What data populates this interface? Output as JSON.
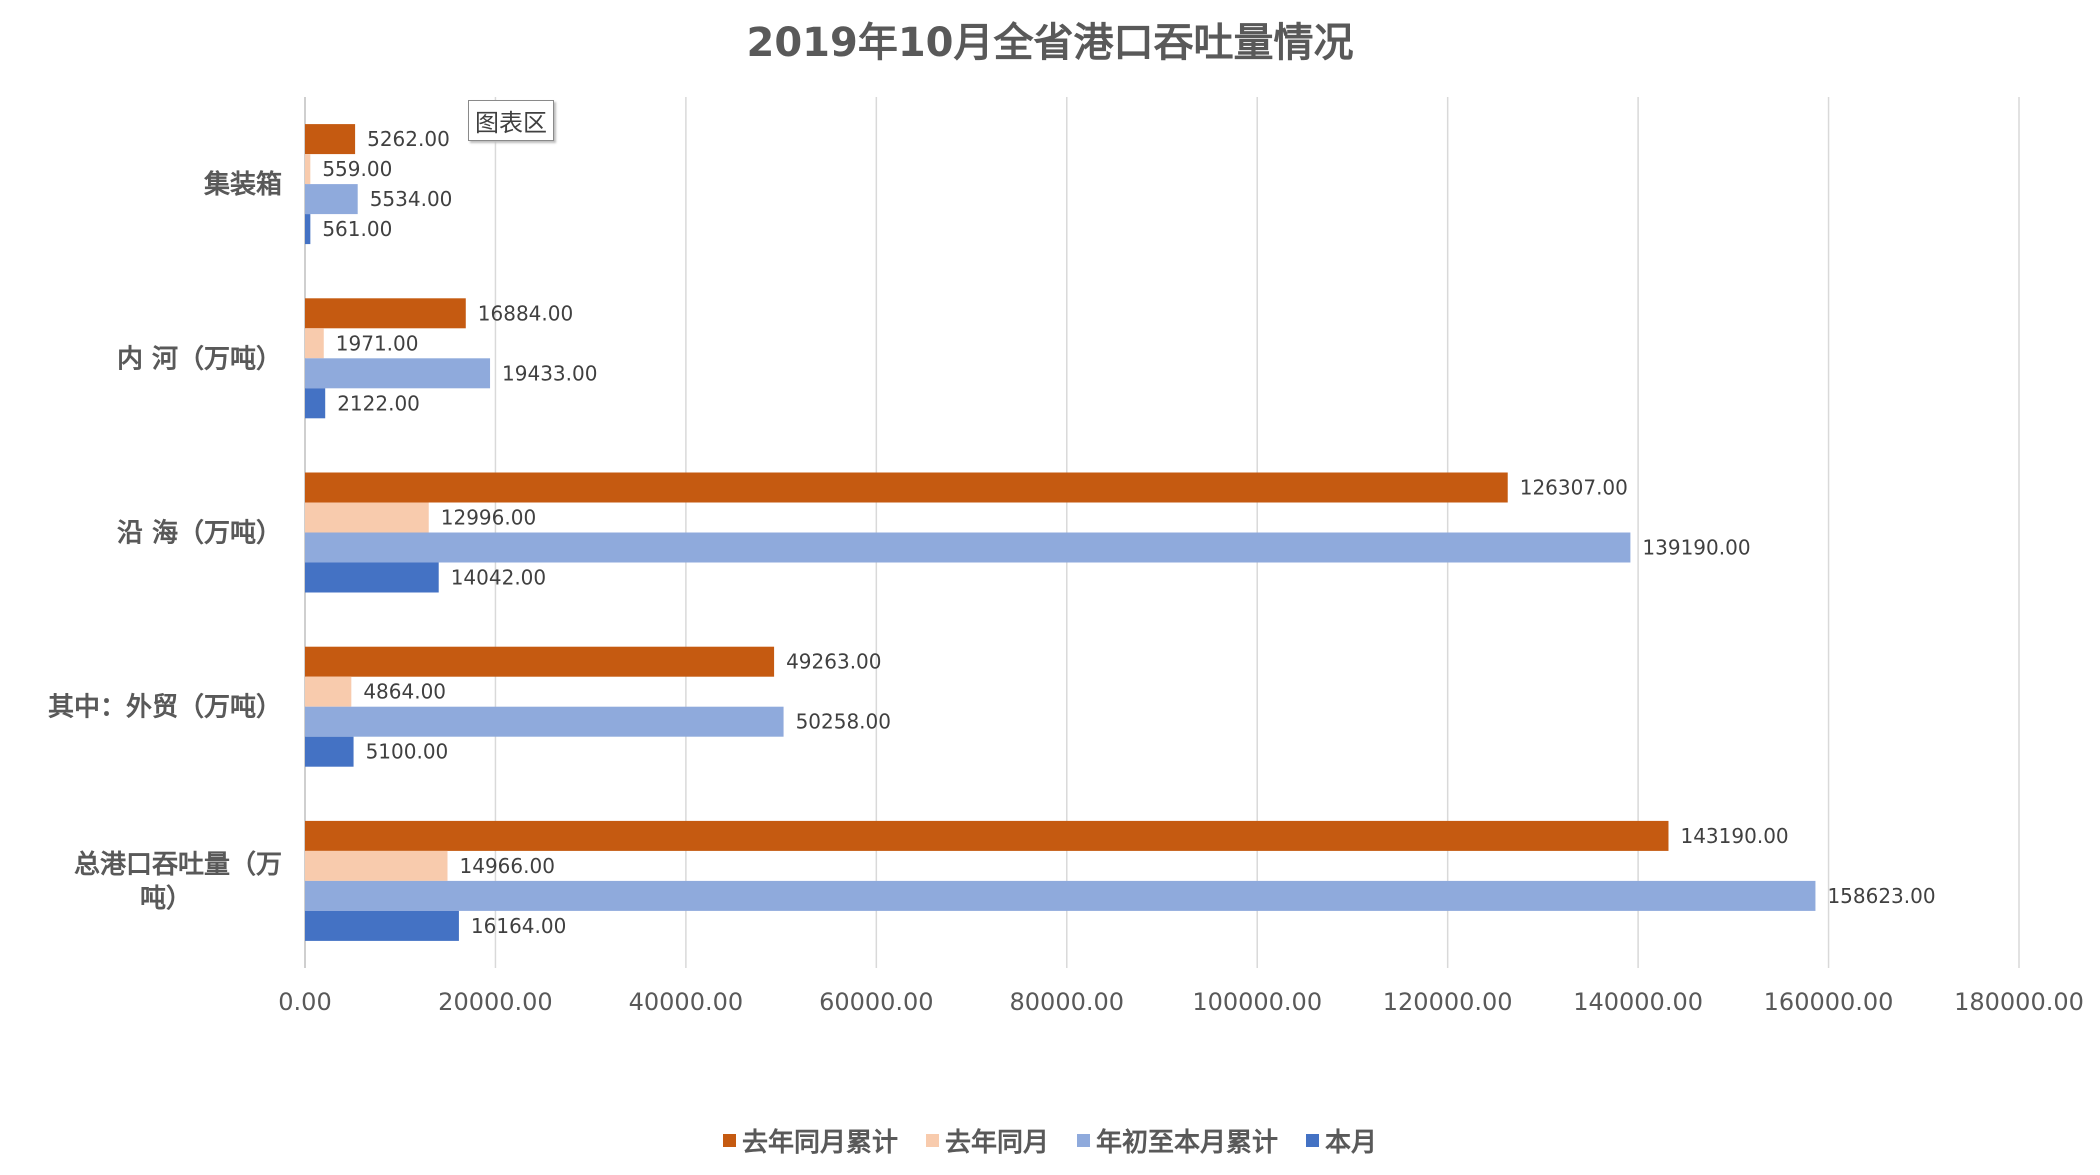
{
  "chart_data": {
    "type": "bar",
    "orientation": "horizontal",
    "title": "2019年10月全省港口吞吐量情况",
    "categories": [
      "集装箱",
      "内 河（万吨）",
      "沿 海（万吨）",
      "其中：外贸（万吨）",
      "总港口吞吐量（万吨）"
    ],
    "category_lines": [
      [
        "集装箱"
      ],
      [
        "内 河（万吨）"
      ],
      [
        "沿 海（万吨）"
      ],
      [
        "其中：外贸（万吨）"
      ],
      [
        "总港口吞吐量（万",
        "吨）"
      ]
    ],
    "series": [
      {
        "name": "去年同月累计",
        "color": "#C55A11",
        "values": [
          5262,
          16884,
          126307,
          49263,
          143190
        ],
        "labels": [
          "5262.00",
          "16884.00",
          "126307.00",
          "49263.00",
          "143190.00"
        ]
      },
      {
        "name": "去年同月",
        "color": "#F8CBAD",
        "values": [
          559,
          1971,
          12996,
          4864,
          14966
        ],
        "labels": [
          "559.00",
          "1971.00",
          "12996.00",
          "4864.00",
          "14966.00"
        ]
      },
      {
        "name": "年初至本月累计",
        "color": "#8FAADC",
        "values": [
          5534,
          19433,
          139190,
          50258,
          158623
        ],
        "labels": [
          "5534.00",
          "19433.00",
          "139190.00",
          "50258.00",
          "158623.00"
        ]
      },
      {
        "name": "本月",
        "color": "#4472C4",
        "values": [
          561,
          2122,
          14042,
          5100,
          16164
        ],
        "labels": [
          "561.00",
          "2122.00",
          "14042.00",
          "5100.00",
          "16164.00"
        ]
      }
    ],
    "xlim": [
      0,
      180000
    ],
    "x_ticks": [
      0,
      20000,
      40000,
      60000,
      80000,
      100000,
      120000,
      140000,
      160000,
      180000
    ],
    "x_tick_labels": [
      "0.00",
      "20000.00",
      "40000.00",
      "60000.00",
      "80000.00",
      "100000.00",
      "120000.00",
      "140000.00",
      "160000.00",
      "180000.00"
    ],
    "grid": true,
    "gridline_color": "#D9D9D9",
    "legend_position": "bottom"
  },
  "tooltip": {
    "text": "图表区"
  }
}
